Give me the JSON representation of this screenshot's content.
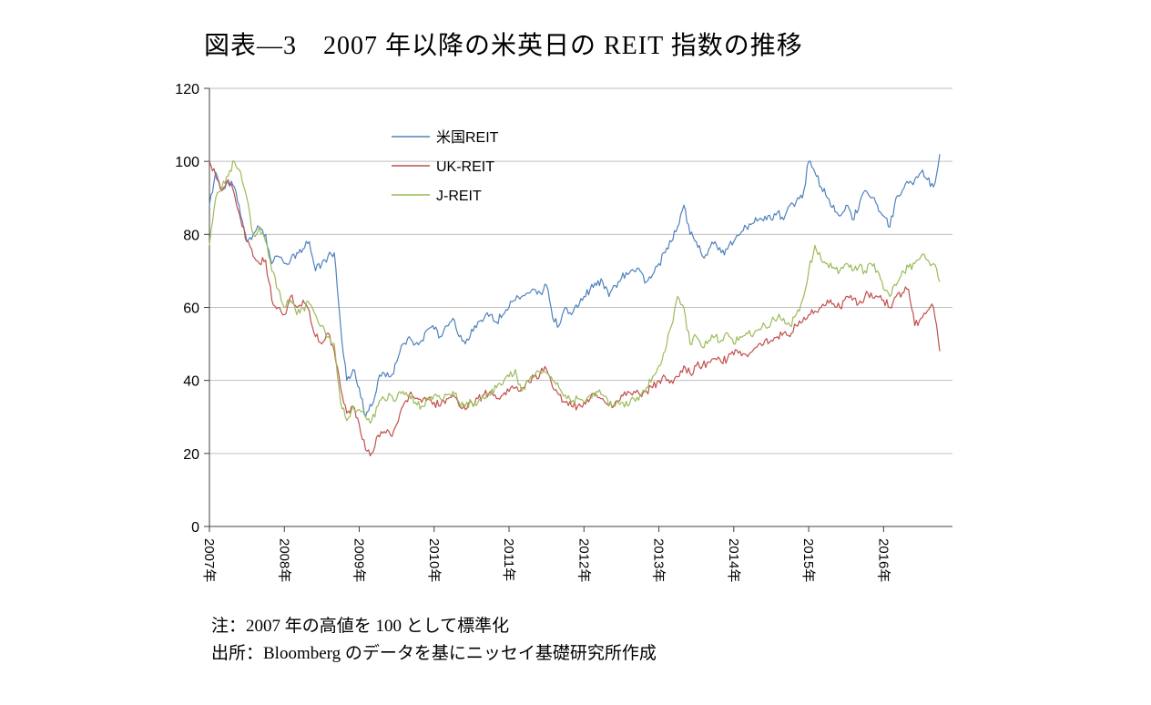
{
  "title": "図表―3　2007 年以降の米英日の REIT 指数の推移",
  "notes": [
    "注：2007 年の高値を 100 として標準化",
    "出所：Bloomberg のデータを基にニッセイ基礎研究所作成"
  ],
  "chart_data": {
    "type": "line",
    "title": "図表―3　2007 年以降の米英日の REIT 指数の推移",
    "xlabel": "",
    "ylabel": "",
    "grid": true,
    "legend_position": "inside-top-center",
    "ylim": [
      0,
      120
    ],
    "yticks": [
      0,
      20,
      40,
      60,
      80,
      100,
      120
    ],
    "xlim": [
      2007,
      2016.92
    ],
    "x_start_year": 2007,
    "x_step_months": 1,
    "xticks": [
      "2007年",
      "2008年",
      "2009年",
      "2010年",
      "2011年",
      "2012年",
      "2013年",
      "2014年",
      "2015年",
      "2016年"
    ],
    "series": [
      {
        "id": "us-reit",
        "name": "米国REIT",
        "color": "#4f81bd",
        "values": [
          88,
          97,
          92,
          94,
          93,
          85,
          78,
          80,
          82,
          80,
          72,
          74,
          72,
          73,
          75,
          76,
          78,
          70,
          72,
          74,
          75,
          55,
          40,
          43,
          38,
          30,
          33,
          40,
          42,
          41,
          45,
          50,
          52,
          50,
          51,
          54,
          54,
          52,
          55,
          57,
          52,
          50,
          54,
          56,
          57,
          58,
          56,
          58,
          60,
          62,
          63,
          64,
          65,
          64,
          66,
          57,
          55,
          60,
          58,
          60,
          63,
          65,
          66,
          67,
          63,
          66,
          68,
          69,
          70,
          70,
          67,
          69,
          72,
          75,
          78,
          82,
          88,
          80,
          78,
          74,
          76,
          78,
          75,
          76,
          78,
          80,
          82,
          83,
          84,
          85,
          84,
          86,
          84,
          88,
          89,
          90,
          100,
          97,
          93,
          90,
          88,
          85,
          88,
          84,
          87,
          92,
          90,
          88,
          85,
          82,
          90,
          92,
          94,
          95,
          97,
          95,
          93,
          102
        ]
      },
      {
        "id": "uk-reit",
        "name": "UK-REIT",
        "color": "#c0504d",
        "values": [
          100,
          96,
          92,
          95,
          91,
          84,
          78,
          74,
          72,
          73,
          62,
          60,
          58,
          63,
          60,
          62,
          59,
          52,
          50,
          53,
          48,
          38,
          31,
          33,
          28,
          21,
          20,
          25,
          26,
          25,
          28,
          33,
          36,
          35,
          34,
          35,
          34,
          33,
          35,
          36,
          33,
          32,
          34,
          35,
          36,
          37,
          35,
          36,
          37,
          38,
          38,
          40,
          41,
          42,
          43,
          38,
          36,
          34,
          33,
          33,
          34,
          35,
          36,
          35,
          33,
          34,
          36,
          37,
          37,
          36,
          37,
          38,
          40,
          41,
          40,
          41,
          44,
          42,
          44,
          44,
          45,
          46,
          45,
          46,
          47,
          48,
          47,
          48,
          50,
          51,
          51,
          52,
          53,
          52,
          55,
          56,
          58,
          59,
          60,
          62,
          61,
          60,
          63,
          62,
          61,
          63,
          64,
          63,
          62,
          60,
          63,
          64,
          65,
          55,
          57,
          59,
          60,
          48
        ]
      },
      {
        "id": "j-reit",
        "name": "J-REIT",
        "color": "#9bbb59",
        "values": [
          77,
          90,
          93,
          96,
          100,
          97,
          90,
          80,
          82,
          78,
          70,
          65,
          60,
          62,
          58,
          60,
          61,
          58,
          55,
          52,
          50,
          34,
          29,
          33,
          32,
          30,
          29,
          33,
          35,
          36,
          35,
          37,
          36,
          34,
          33,
          35,
          36,
          35,
          36,
          37,
          34,
          33,
          34,
          34,
          35,
          36,
          38,
          39,
          41,
          43,
          37,
          40,
          41,
          42,
          42,
          40,
          38,
          36,
          34,
          35,
          34,
          36,
          37,
          36,
          33,
          33,
          34,
          33,
          35,
          36,
          38,
          41,
          44,
          48,
          55,
          63,
          60,
          50,
          52,
          49,
          51,
          52,
          51,
          53,
          50,
          52,
          53,
          52,
          54,
          55,
          56,
          57,
          57,
          55,
          58,
          62,
          70,
          77,
          73,
          72,
          71,
          70,
          72,
          70,
          71,
          70,
          72,
          70,
          65,
          63,
          66,
          70,
          71,
          72,
          74,
          73,
          72,
          67
        ]
      }
    ]
  }
}
